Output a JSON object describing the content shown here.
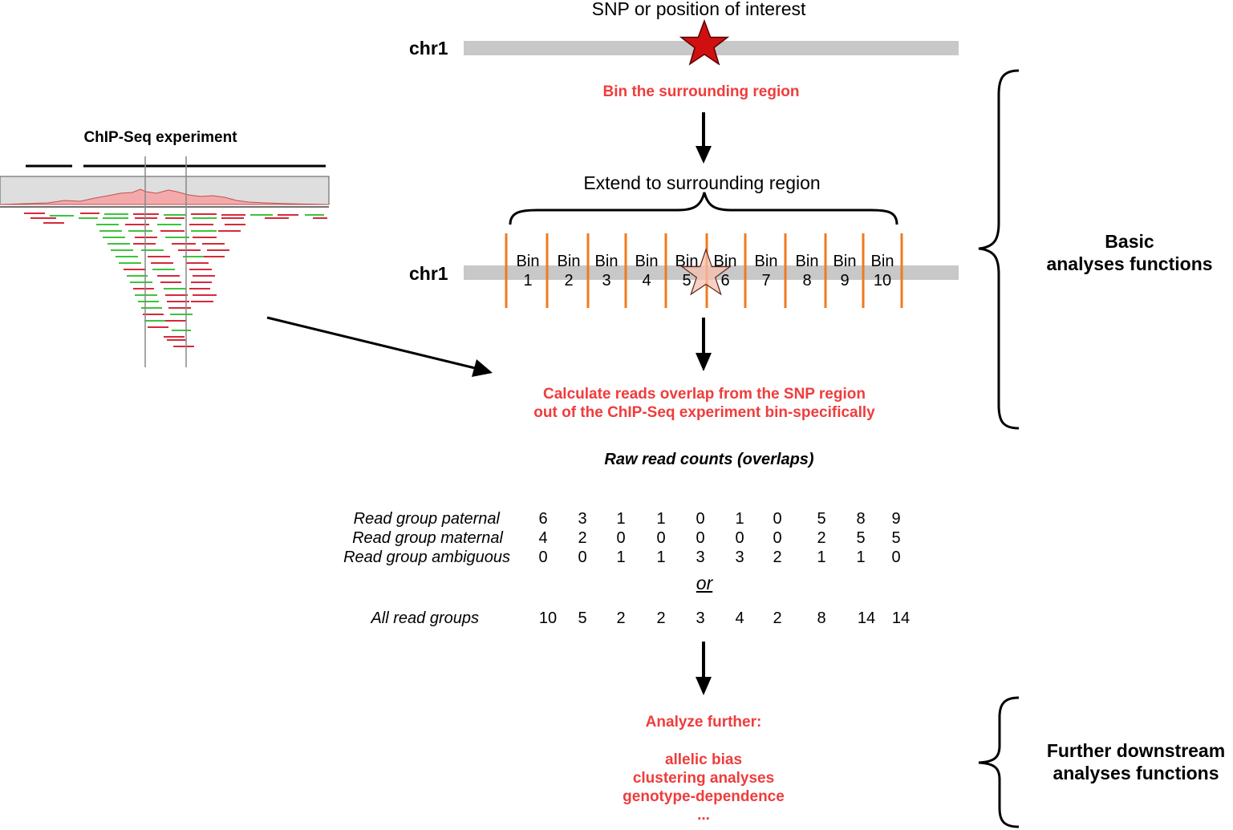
{
  "top": {
    "snp_label": "SNP or position of interest",
    "chrom_label": "chr1",
    "step_bin": "Bin the surrounding region"
  },
  "extend": {
    "label": "Extend to surrounding region",
    "chrom_label": "chr1",
    "bins": [
      "Bin\n1",
      "Bin\n2",
      "Bin\n3",
      "Bin\n4",
      "Bin\n5",
      "Bin\n6",
      "Bin\n7",
      "Bin\n8",
      "Bin\n9",
      "Bin\n10"
    ]
  },
  "chipseq": {
    "title": "ChIP-Seq experiment"
  },
  "calc": {
    "line1": "Calculate reads overlap from the SNP region",
    "line2": "out of the ChIP-Seq experiment bin-specifically"
  },
  "counts": {
    "title": "Raw read counts (overlaps)",
    "rows": [
      {
        "label": "Read group paternal",
        "values": [
          "6",
          "3",
          "1",
          "1",
          "0",
          "1",
          "0",
          "5",
          "8",
          "9"
        ]
      },
      {
        "label": "Read group maternal",
        "values": [
          "4",
          "2",
          "0",
          "0",
          "0",
          "0",
          "0",
          "2",
          "5",
          "5"
        ]
      },
      {
        "label": "Read group ambiguous",
        "values": [
          "0",
          "0",
          "1",
          "1",
          "3",
          "3",
          "2",
          "1",
          "1",
          "0"
        ]
      }
    ],
    "or_label": "or",
    "all": {
      "label": "All read groups",
      "values": [
        "10",
        "5",
        "2",
        "2",
        "3",
        "4",
        "2",
        "8",
        "14",
        "14"
      ]
    }
  },
  "further": {
    "heading": "Analyze further:",
    "items": [
      "allelic bias",
      "clustering analyses",
      "genotype-dependence",
      "..."
    ]
  },
  "braces": {
    "basic": "Basic\nanalyses functions",
    "downstream": "Further downstream\nanalyses functions"
  },
  "colors": {
    "accent_red": "#f03c3c",
    "bin_orange": "#f07a1e",
    "chrom_gray": "#c8c8c8",
    "star_red": "#d01010",
    "read_red": "#d42a3a",
    "read_green": "#3cc43c"
  }
}
